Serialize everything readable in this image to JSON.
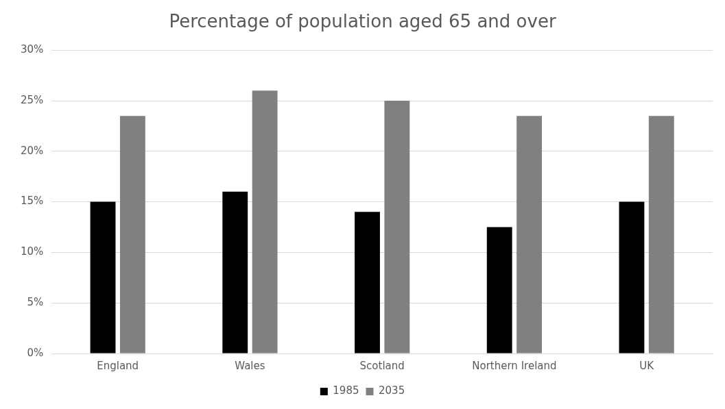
{
  "chart_data": {
    "type": "bar",
    "title": "Percentage of population aged 65 and over",
    "categories": [
      "England",
      "Wales",
      "Scotland",
      "Northern Ireland",
      "UK"
    ],
    "series": [
      {
        "name": "1985",
        "color": "#000000",
        "values": [
          15,
          16,
          14,
          12.5,
          15
        ]
      },
      {
        "name": "2035",
        "color": "#808080",
        "values": [
          23.5,
          26,
          25,
          23.5,
          23.5
        ]
      }
    ],
    "ylim": [
      0,
      30
    ],
    "yticks": [
      {
        "value": 0,
        "label": "0%"
      },
      {
        "value": 5,
        "label": "5%"
      },
      {
        "value": 10,
        "label": "10%"
      },
      {
        "value": 15,
        "label": "15%"
      },
      {
        "value": 20,
        "label": "20%"
      },
      {
        "value": 25,
        "label": "25%"
      },
      {
        "value": 30,
        "label": "30%"
      }
    ],
    "grid": "y",
    "legend": "bottom"
  }
}
